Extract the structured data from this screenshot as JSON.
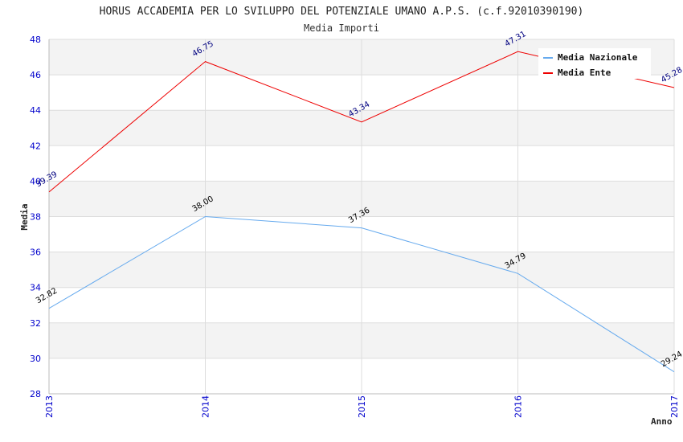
{
  "chart_data": {
    "type": "line",
    "title": "HORUS ACCADEMIA PER LO SVILUPPO DEL POTENZIALE UMANO A.P.S. (c.f.92010390190)",
    "subtitle": "Media Importi",
    "xlabel": "Anno",
    "ylabel": "Media",
    "x": [
      "2013",
      "2014",
      "2015",
      "2016",
      "2017"
    ],
    "ylim": [
      28,
      48
    ],
    "yticks": [
      "28",
      "30",
      "32",
      "34",
      "36",
      "38",
      "40",
      "42",
      "44",
      "46",
      "48"
    ],
    "grid": true,
    "legend_position": "top-right",
    "series": [
      {
        "name": "Media Nazionale",
        "color": "#66aaee",
        "label_color": "#000000",
        "values": [
          32.82,
          38.0,
          37.36,
          34.79,
          29.24
        ],
        "labels": [
          "32.82",
          "38.00",
          "37.36",
          "34.79",
          "29.24"
        ]
      },
      {
        "name": "Media Ente",
        "color": "#ee0000",
        "label_color": "#000080",
        "values": [
          39.39,
          46.75,
          43.34,
          47.31,
          45.28
        ],
        "labels": [
          "39.39",
          "46.75",
          "43.34",
          "47.31",
          "45.28"
        ]
      }
    ]
  }
}
